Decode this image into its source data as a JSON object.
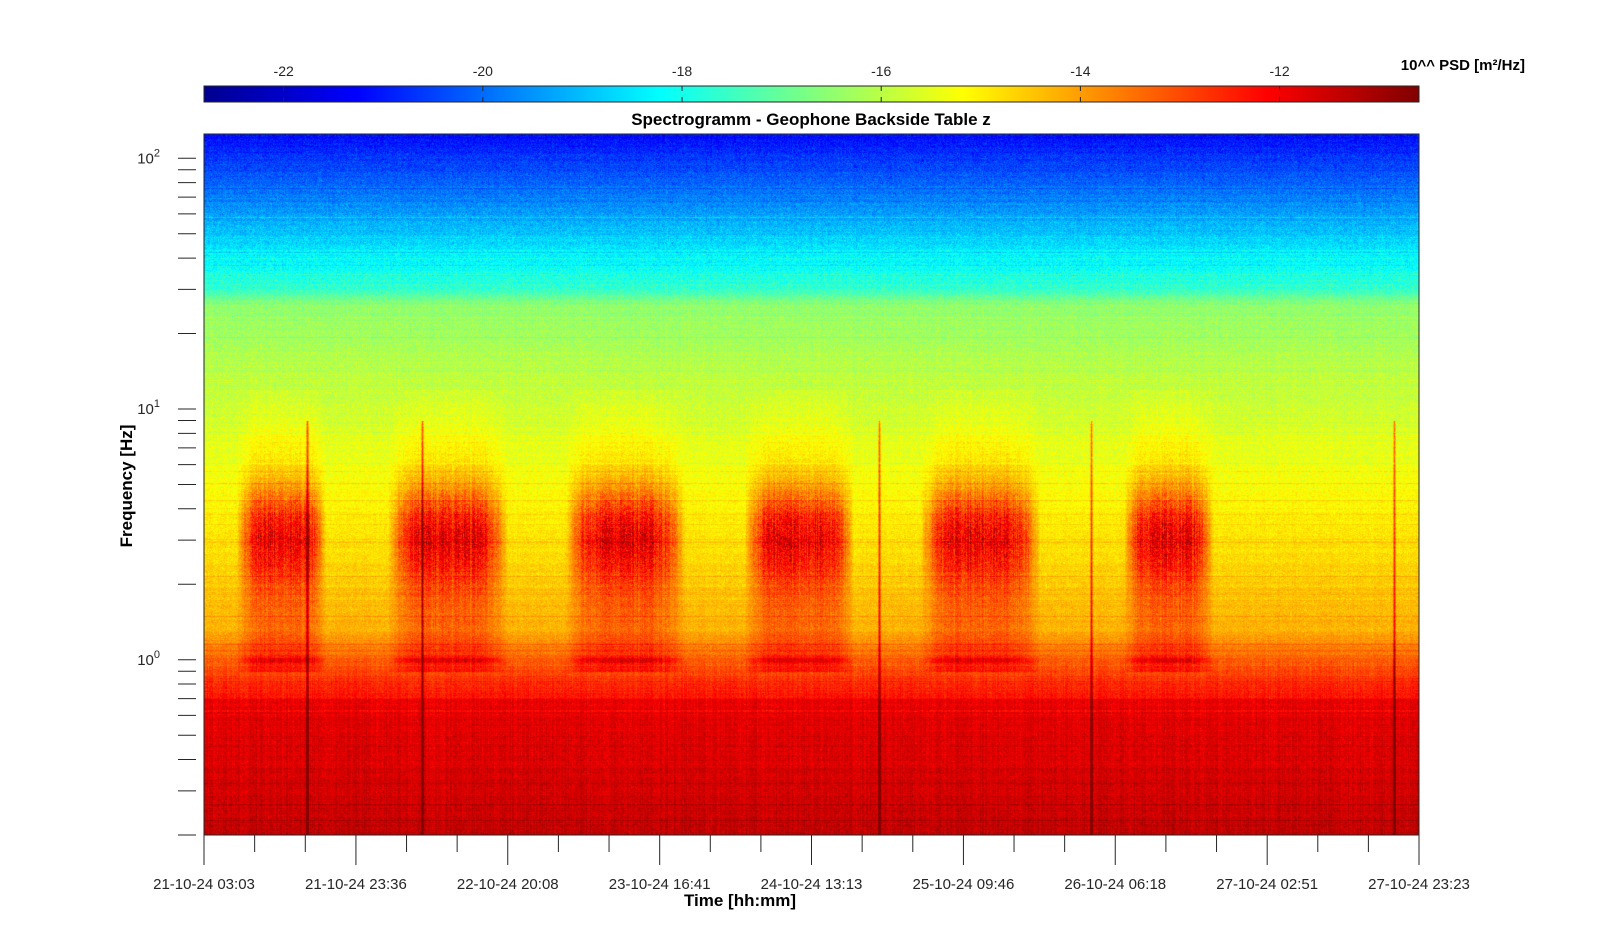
{
  "chart_data": {
    "type": "heatmap",
    "title": "Spectrogramm - Geophone Backside Table z",
    "xlabel": "Time [hh:mm]",
    "ylabel": "Frequency [Hz]",
    "yscale": "log",
    "ylim": [
      0.2,
      125
    ],
    "y_ticks": [
      {
        "value": 1,
        "label": "10^0"
      },
      {
        "value": 10,
        "label": "10^1"
      },
      {
        "value": 100,
        "label": "10^2"
      }
    ],
    "x_ticks": [
      "21-10-24 03:03",
      "21-10-24 23:36",
      "22-10-24 20:08",
      "23-10-24 16:41",
      "24-10-24 13:13",
      "25-10-24 09:46",
      "26-10-24 06:18",
      "27-10-24 02:51",
      "27-10-24 23:23"
    ],
    "colorbar": {
      "label": "10^^ PSD [m²/Hz]",
      "ticks": [
        -22,
        -20,
        -18,
        -16,
        -14,
        -12
      ],
      "range": [
        -22.8,
        -10.6
      ],
      "colormap": "jet"
    },
    "features": {
      "daily_activity_band_hz": [
        2.5,
        4
      ],
      "microseism_line_hz": 1.0,
      "activity_episodes": [
        {
          "start": "21-10-24 09:00",
          "end": "21-10-24 18:00",
          "level": -13.4
        },
        {
          "start": "22-10-24 06:00",
          "end": "22-10-24 18:00",
          "level": -13.4
        },
        {
          "start": "23-10-24 06:00",
          "end": "23-10-24 18:00",
          "level": -13.6
        },
        {
          "start": "24-10-24 06:00",
          "end": "24-10-24 17:00",
          "level": -13.4
        },
        {
          "start": "25-10-24 06:00",
          "end": "25-10-24 18:00",
          "level": -13.4
        },
        {
          "start": "26-10-24 09:00",
          "end": "26-10-24 18:00",
          "level": -13.3
        }
      ],
      "transients": [
        "21-10-24 17:00",
        "22-10-24 08:30",
        "24-10-24 22:20",
        "26-10-24 03:00",
        "27-10-24 20:00"
      ]
    }
  }
}
